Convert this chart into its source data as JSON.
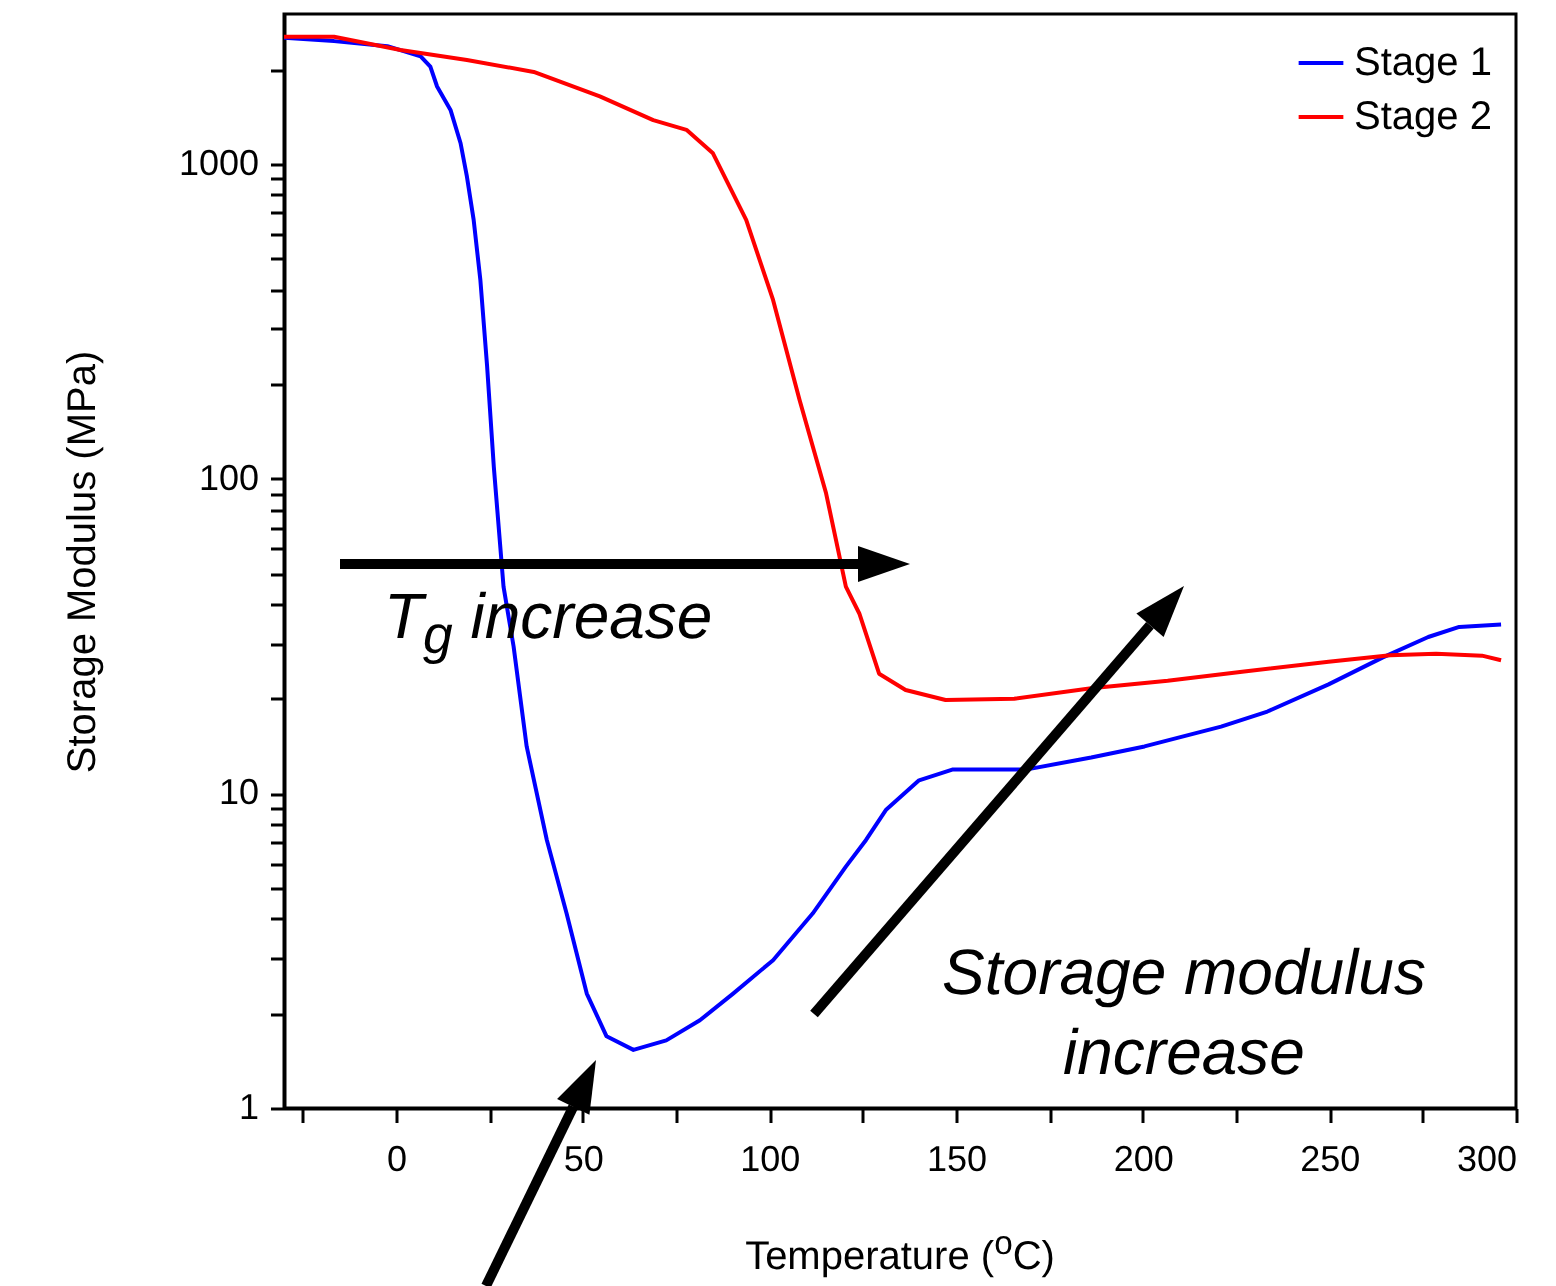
{
  "chart_data": {
    "type": "line",
    "xlabel": "Temperature ($^{o}$C)",
    "ylabel": "Storage Modulus (MPa)",
    "log": "y",
    "legend": "top right",
    "xlim": [
      -30,
      300
    ],
    "xticks": [
      {
        "value": -25,
        "label": null
      },
      0,
      {
        "value": 25,
        "label": null
      },
      50,
      {
        "value": 75,
        "label": null
      },
      100,
      {
        "value": 125,
        "label": null
      },
      150,
      {
        "value": 175,
        "label": null
      },
      200,
      {
        "value": 225,
        "label": null
      },
      250,
      {
        "value": 275,
        "label": null
      },
      300
    ],
    "ylim": [
      1,
      3000
    ],
    "yticks": [
      1,
      {
        "value": 2,
        "label": null
      },
      {
        "value": 3,
        "label": null
      },
      {
        "value": 4,
        "label": null
      },
      {
        "value": 5,
        "label": null
      },
      {
        "value": 6,
        "label": null
      },
      {
        "value": 7,
        "label": null
      },
      {
        "value": 8,
        "label": null
      },
      {
        "value": 9,
        "label": null
      },
      10,
      {
        "value": 20,
        "label": null
      },
      {
        "value": 30,
        "label": null
      },
      {
        "value": 40,
        "label": null
      },
      {
        "value": 50,
        "label": null
      },
      {
        "value": 60,
        "label": null
      },
      {
        "value": 70,
        "label": null
      },
      {
        "value": 80,
        "label": null
      },
      {
        "value": 90,
        "label": null
      },
      100,
      {
        "value": 200,
        "label": null
      },
      {
        "value": 300,
        "label": null
      },
      {
        "value": 400,
        "label": null
      },
      {
        "value": 500,
        "label": null
      },
      {
        "value": 600,
        "label": null
      },
      {
        "value": 700,
        "label": null
      },
      {
        "value": 800,
        "label": null
      },
      {
        "value": 900,
        "label": null
      },
      1000,
      {
        "value": 2000,
        "label": null
      }
    ],
    "annotations": [
      "T$_{g}$ increase",
      "Storage modulus increase"
    ],
    "series": [
      {
        "name": "Stage 1",
        "color": "#0000ff",
        "x": [
          -30,
          -16.6,
          -2.3,
          6.6,
          9.2,
          11,
          14.6,
          17.3,
          19,
          20.8,
          22.6,
          24.4,
          26.2,
          28.8,
          31.5,
          35,
          40.4,
          45.7,
          51.1,
          56.4,
          63.6,
          72.4,
          81.4,
          90.3,
          101,
          111.6,
          120.5,
          125.9,
          131.2,
          140.1,
          149,
          168.7,
          186.2,
          200.5,
          221,
          233.4,
          249.8,
          264.2,
          276.5,
          284.8,
          296
        ],
        "values": [
          2520,
          2460,
          2370,
          2200,
          2040,
          1765,
          1487,
          1165,
          912,
          665,
          428,
          228,
          109,
          45.4,
          29.3,
          14.1,
          7.11,
          4.15,
          2.31,
          1.69,
          1.53,
          1.64,
          1.9,
          2.31,
          2.95,
          4.15,
          5.85,
          7.11,
          8.85,
          11,
          11.9,
          11.9,
          13,
          14.1,
          16.3,
          18.2,
          22.2,
          27,
          31.4,
          33.8,
          34.4
        ]
      },
      {
        "name": "Stage 2",
        "color": "#ff0000",
        "x": [
          -30,
          -16.6,
          1.2,
          19,
          36.9,
          54.6,
          68.9,
          77.8,
          84.9,
          93.8,
          101,
          108.1,
          115.2,
          120.5,
          124.1,
          129.4,
          136.5,
          147.2,
          165.6,
          186.2,
          206.7,
          227.2,
          249.8,
          266.3,
          278.6,
          290.9,
          296
        ],
        "values": [
          2540,
          2540,
          2306,
          2143,
          1963,
          1641,
          1380,
          1285,
          1082,
          665,
          370,
          178,
          89.9,
          45.4,
          37.3,
          24,
          21.3,
          19.8,
          20,
          21.6,
          22.8,
          24.4,
          26.2,
          27.5,
          27.8,
          27.4,
          26.5
        ]
      }
    ]
  }
}
